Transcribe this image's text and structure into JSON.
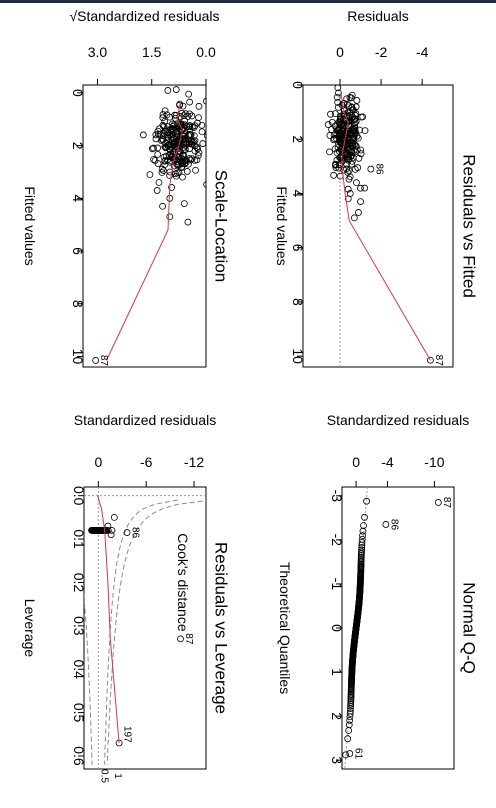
{
  "chart_data": [
    {
      "id": "rvf",
      "type": "scatter",
      "title": "Residuals vs Fitted",
      "xlabel": "Fitted values",
      "ylabel": "Residuals",
      "xlim": [
        0,
        10.4
      ],
      "ylim": [
        -5.5,
        1.8
      ],
      "x_ticks": [
        0,
        2,
        4,
        6,
        8,
        10
      ],
      "y_ticks": [
        -4,
        -2,
        0
      ],
      "reference_line_y": 0,
      "annotations": [
        {
          "label": "87",
          "x": 10.15,
          "y": -4.4
        },
        {
          "label": "86",
          "x": 3.1,
          "y": -1.5
        }
      ],
      "cluster": {
        "x_center": 1.9,
        "x_spread": 0.7,
        "y_center": -0.3,
        "y_spread": 0.35,
        "count": 240
      },
      "points": [
        {
          "x": 10.15,
          "y": -4.4
        },
        {
          "x": 3.1,
          "y": -1.5
        },
        {
          "x": 3.6,
          "y": -0.8
        },
        {
          "x": 4.0,
          "y": -0.5
        },
        {
          "x": 4.3,
          "y": -1.0
        },
        {
          "x": 4.7,
          "y": -0.9
        },
        {
          "x": 4.9,
          "y": -0.7
        },
        {
          "x": 4.2,
          "y": -0.4
        },
        {
          "x": 3.8,
          "y": -1.2
        }
      ],
      "smooth": [
        {
          "x": 0.3,
          "y": -0.05
        },
        {
          "x": 1.0,
          "y": -0.2
        },
        {
          "x": 1.4,
          "y": -0.4
        },
        {
          "x": 2.0,
          "y": -0.25
        },
        {
          "x": 2.6,
          "y": -0.1
        },
        {
          "x": 3.0,
          "y": -0.1
        },
        {
          "x": 4.0,
          "y": -0.25
        },
        {
          "x": 5.0,
          "y": -0.45
        },
        {
          "x": 10.15,
          "y": -4.4
        }
      ]
    },
    {
      "id": "sl",
      "type": "scatter",
      "title": "Scale-Location",
      "xlabel": "Fitted values",
      "ylabel": "Standardized residuals",
      "ylabel_prefix": "√",
      "xlim": [
        -0.3,
        10.4
      ],
      "ylim": [
        0,
        3.4
      ],
      "x_ticks": [
        0,
        2,
        4,
        6,
        8,
        10
      ],
      "y_ticks": [
        0.0,
        1.5,
        3.0
      ],
      "y_tick_labels": [
        "0.0",
        "1.5",
        "3.0"
      ],
      "annotations": [
        {
          "label": "87",
          "x": 10.15,
          "y": 3.05
        }
      ],
      "cluster": {
        "x_center": 1.9,
        "x_spread": 0.7,
        "y_center": 0.75,
        "y_spread": 0.3,
        "count": 240
      },
      "points": [
        {
          "x": 10.15,
          "y": 3.05
        },
        {
          "x": 3.1,
          "y": 1.55
        },
        {
          "x": 3.4,
          "y": 1.3
        },
        {
          "x": 4.0,
          "y": 1.0
        },
        {
          "x": 4.3,
          "y": 1.2
        },
        {
          "x": 4.7,
          "y": 1.0
        },
        {
          "x": 4.9,
          "y": 0.5
        },
        {
          "x": 4.2,
          "y": 0.6
        },
        {
          "x": 3.7,
          "y": 1.35
        }
      ],
      "smooth": [
        {
          "x": 0.3,
          "y": 0.7
        },
        {
          "x": 1.0,
          "y": 0.8
        },
        {
          "x": 1.4,
          "y": 0.65
        },
        {
          "x": 2.0,
          "y": 0.75
        },
        {
          "x": 2.6,
          "y": 0.9
        },
        {
          "x": 3.5,
          "y": 1.0
        },
        {
          "x": 5.2,
          "y": 1.05
        },
        {
          "x": 10.15,
          "y": 2.75
        }
      ]
    },
    {
      "id": "qq",
      "type": "scatter",
      "title": "Normal Q-Q",
      "xlabel": "Theoretical Quantiles",
      "ylabel": "Standardized residuals",
      "xlim": [
        -3.2,
        3.2
      ],
      "ylim": [
        -12.5,
        1.8
      ],
      "x_ticks": [
        -3,
        -2,
        -1,
        0,
        1,
        2,
        3
      ],
      "y_ticks": [
        -10,
        -4,
        0
      ],
      "annotations": [
        {
          "label": "87",
          "x": -2.85,
          "y": -10.5
        },
        {
          "label": "86",
          "x": -2.35,
          "y": -3.8
        },
        {
          "label": "61",
          "x": 2.85,
          "y": 0.8
        }
      ],
      "reference_line": [
        {
          "x": -3.2,
          "y": -1.45
        },
        {
          "x": 3.2,
          "y": 1.45
        }
      ],
      "sample_curve": {
        "n": 250,
        "scale": 0.45,
        "tail_low": -10.5,
        "tail_high": 0.85
      },
      "points": [
        {
          "x": -2.85,
          "y": -10.5
        },
        {
          "x": -2.35,
          "y": -3.8
        },
        {
          "x": 2.85,
          "y": 0.8
        }
      ]
    },
    {
      "id": "rvl",
      "type": "scatter",
      "title": "Residuals vs Leverage",
      "xlabel": "Leverage",
      "ylabel": "Standardized residuals",
      "xlim": [
        -0.02,
        0.63
      ],
      "ylim": [
        -13.5,
        1.8
      ],
      "x_ticks": [
        0.0,
        0.1,
        0.2,
        0.3,
        0.4,
        0.5,
        0.6
      ],
      "x_tick_labels": [
        "0.0",
        "0.1",
        "0.2",
        "0.3",
        "0.4",
        "0.5",
        "0.6"
      ],
      "y_ticks": [
        -12,
        -6,
        0
      ],
      "annotations": [
        {
          "label": "87",
          "x": 0.33,
          "y": -10.3
        },
        {
          "label": "86",
          "x": 0.085,
          "y": -3.6
        },
        {
          "label": "197",
          "x": 0.55,
          "y": -2.6
        }
      ],
      "legend_text": "Cook's distance",
      "contour_labels": [
        {
          "label": "0.5",
          "x": 0.6,
          "y": -0.7
        },
        {
          "label": "1",
          "x": 0.6,
          "y": -2.4
        }
      ],
      "cluster": {
        "x_center": 0.02,
        "x_spread": 0.015,
        "y_center": -0.1,
        "y_spread": 0.4,
        "count": 240
      },
      "points": [
        {
          "x": 0.33,
          "y": -10.3
        },
        {
          "x": 0.085,
          "y": -3.6
        },
        {
          "x": 0.57,
          "y": -2.6
        },
        {
          "x": 0.07,
          "y": -1.2
        },
        {
          "x": 0.05,
          "y": -2.0
        },
        {
          "x": 0.09,
          "y": -1.6
        }
      ],
      "smooth": [
        {
          "x": 0.0,
          "y": 0.1
        },
        {
          "x": 0.03,
          "y": -0.4
        },
        {
          "x": 0.08,
          "y": -0.8
        },
        {
          "x": 0.2,
          "y": -1.2
        },
        {
          "x": 0.33,
          "y": -1.5
        },
        {
          "x": 0.57,
          "y": -2.6
        }
      ]
    }
  ],
  "colors": {
    "points": "#000000",
    "smooth": "#e0344a",
    "reference": "#9a9a9a",
    "cooks": "#8a8a8a",
    "topbar": "#1f2a44"
  }
}
